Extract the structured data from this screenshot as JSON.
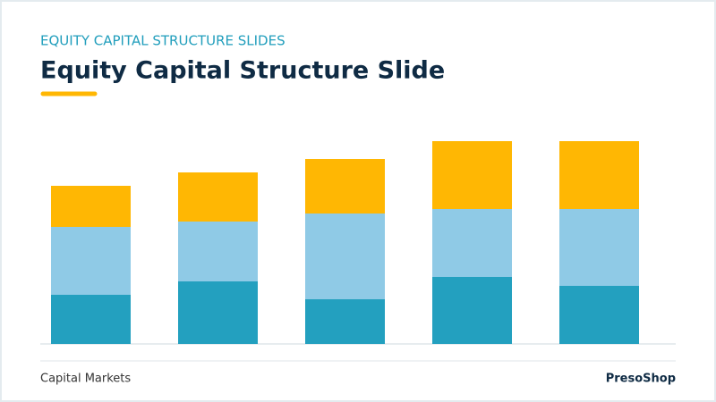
{
  "header": {
    "kicker": "EQUITY CAPITAL STRUCTURE SLIDES",
    "title": "Equity Capital Structure Slide"
  },
  "chart_data": {
    "type": "bar",
    "stacked": true,
    "categories": [
      null,
      null,
      null,
      null,
      null
    ],
    "ylim": [
      0,
      250
    ],
    "series": [
      {
        "color": "#23a0bf",
        "values": [
          55,
          70,
          50,
          75,
          65
        ]
      },
      {
        "color": "#8fcae6",
        "values": [
          76,
          67,
          96,
          76,
          86
        ]
      },
      {
        "color": "#ffb703",
        "values": [
          46,
          55,
          61,
          76,
          76
        ]
      }
    ]
  },
  "footer": {
    "left": "Capital Markets",
    "right": "PresoShop"
  }
}
